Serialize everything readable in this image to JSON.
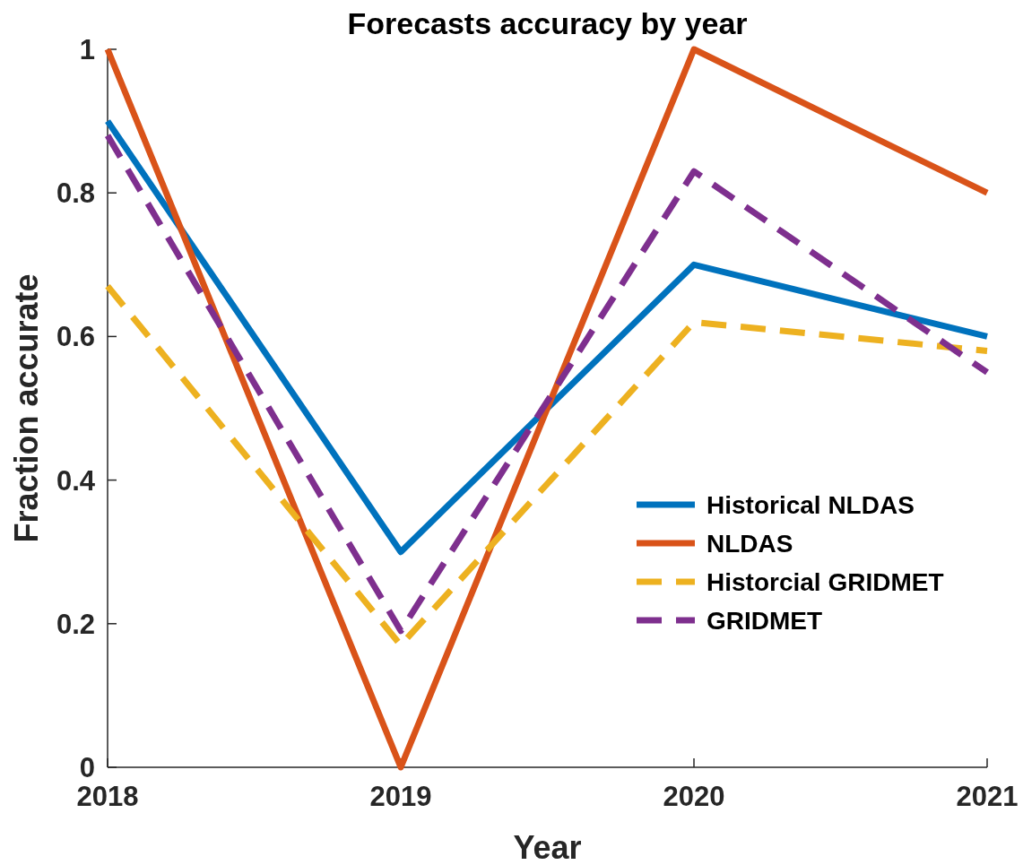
{
  "chart_data": {
    "type": "line",
    "title": "Forecasts accuracy by year",
    "xlabel": "Year",
    "ylabel": "Fraction accurate",
    "x": [
      2018,
      2019,
      2020,
      2021
    ],
    "xlim": [
      2018,
      2021
    ],
    "xticks": [
      2018,
      2019,
      2020,
      2021
    ],
    "ylim": [
      0,
      1
    ],
    "yticks": [
      0,
      0.2,
      0.4,
      0.6,
      0.8,
      1
    ],
    "legend": "right",
    "grid": false,
    "series": [
      {
        "name": "Historical NLDAS",
        "color": "#0072bd",
        "line_style": "solid",
        "values": [
          0.9,
          0.3,
          0.7,
          0.6
        ]
      },
      {
        "name": "NLDAS",
        "color": "#d95319",
        "line_style": "solid",
        "values": [
          1,
          0,
          1,
          0.8
        ]
      },
      {
        "name": "Historcial GRIDMET",
        "color": "#edb120",
        "line_style": "dashed",
        "values": [
          0.67,
          0.17,
          0.62,
          0.58
        ]
      },
      {
        "name": "GRIDMET",
        "color": "#7e2f8e",
        "line_style": "dashed",
        "values": [
          0.88,
          0.19,
          0.83,
          0.55
        ]
      }
    ]
  }
}
